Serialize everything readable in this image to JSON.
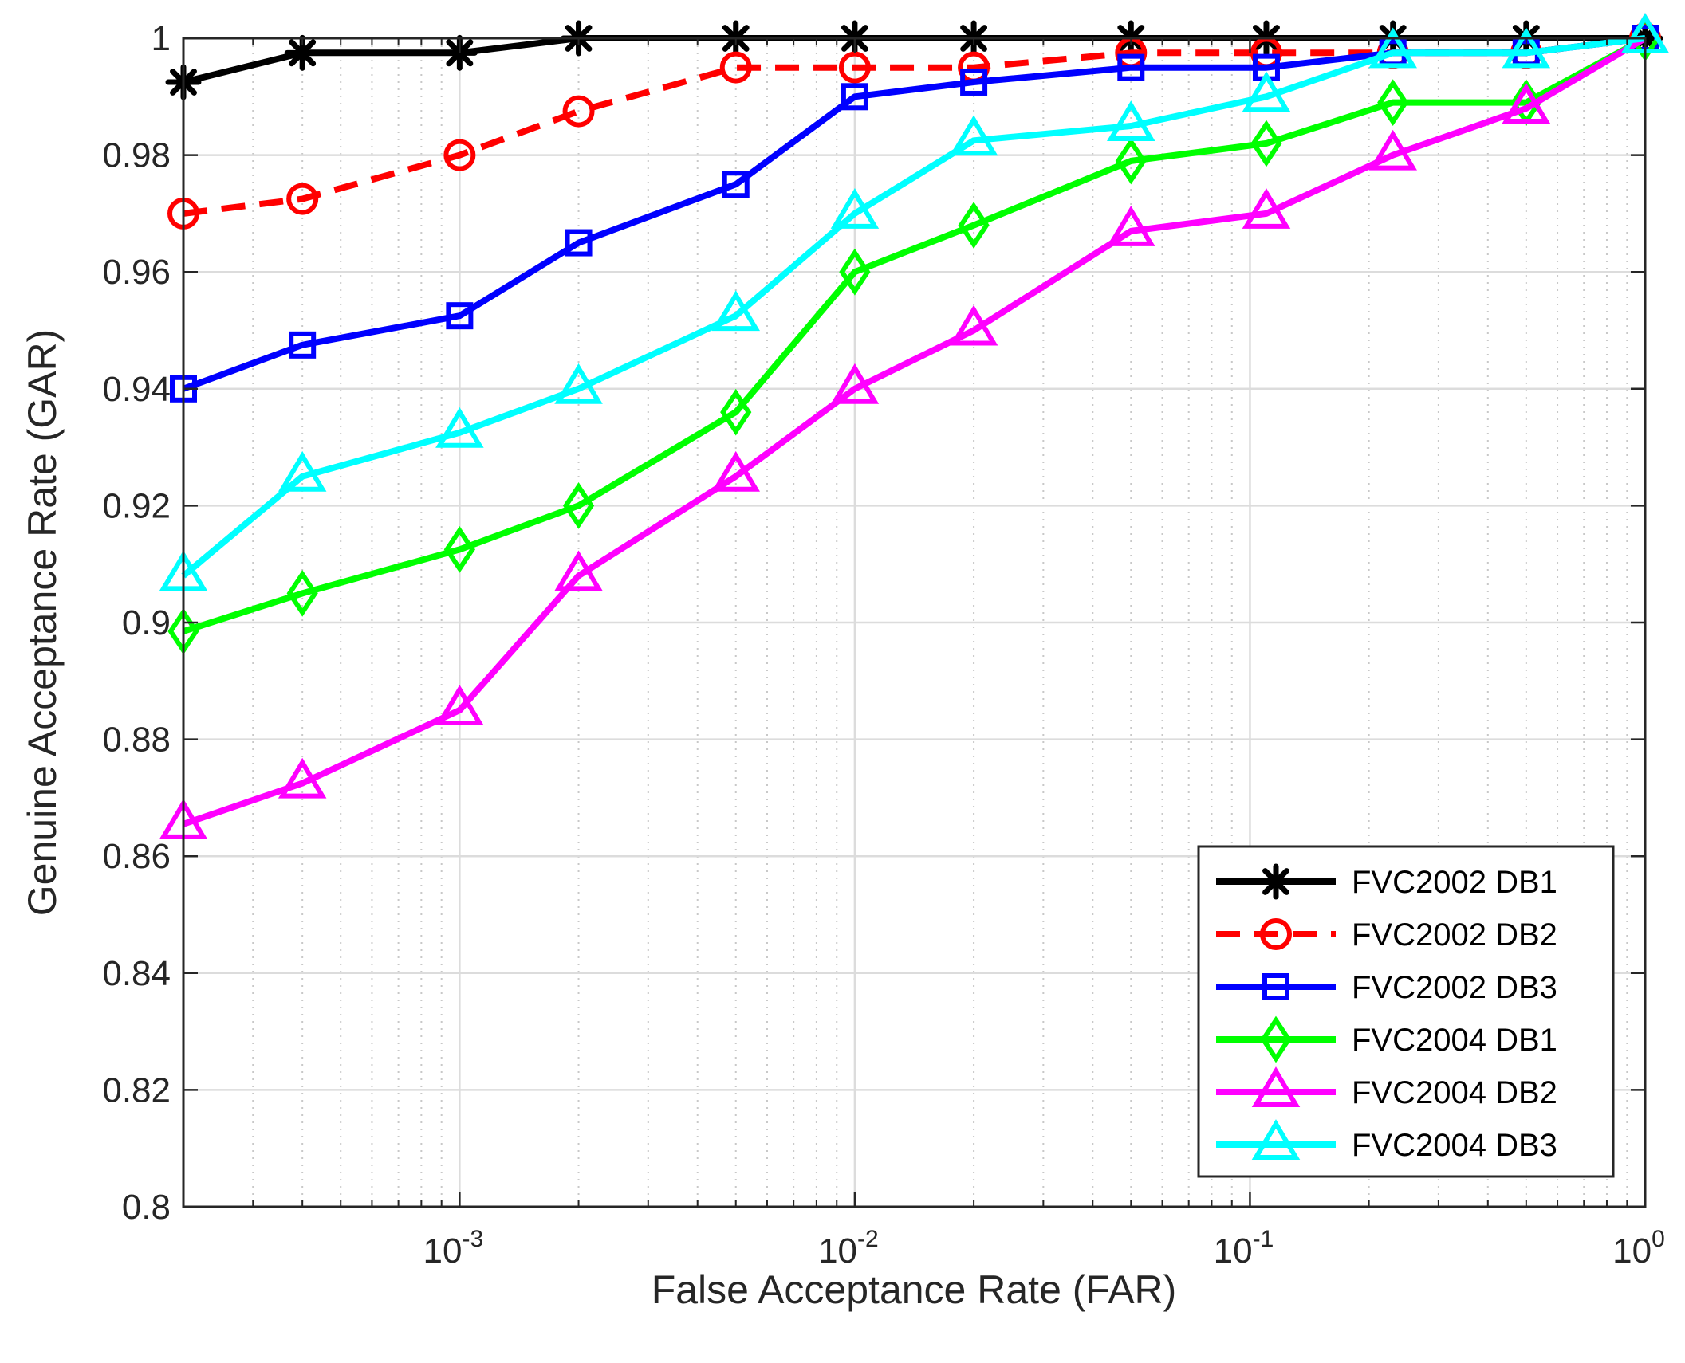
{
  "chart_data": {
    "type": "line",
    "title": "",
    "xlabel": "False Acceptance Rate (FAR)",
    "ylabel": "Genuine Acceptance Rate (GAR)",
    "x_scale": "log",
    "xlim": [
      0.0002,
      1
    ],
    "ylim": [
      0.8,
      1.0
    ],
    "grid": true,
    "legend_position": "bottom-right",
    "x_ticks": [
      {
        "value": 0.001,
        "base": "10",
        "exp": "-3"
      },
      {
        "value": 0.01,
        "base": "10",
        "exp": "-2"
      },
      {
        "value": 0.1,
        "base": "10",
        "exp": "-1"
      },
      {
        "value": 1,
        "base": "10",
        "exp": "0"
      }
    ],
    "y_ticks": [
      {
        "value": 0.8,
        "label": "0.8"
      },
      {
        "value": 0.82,
        "label": "0.82"
      },
      {
        "value": 0.84,
        "label": "0.84"
      },
      {
        "value": 0.86,
        "label": "0.86"
      },
      {
        "value": 0.88,
        "label": "0.88"
      },
      {
        "value": 0.9,
        "label": "0.9"
      },
      {
        "value": 0.92,
        "label": "0.92"
      },
      {
        "value": 0.94,
        "label": "0.94"
      },
      {
        "value": 0.96,
        "label": "0.96"
      },
      {
        "value": 0.98,
        "label": "0.98"
      },
      {
        "value": 1.0,
        "label": "1"
      }
    ],
    "x": [
      0.0002,
      0.0004,
      0.001,
      0.002,
      0.005,
      0.01,
      0.02,
      0.05,
      0.11,
      0.23,
      0.5,
      1.0
    ],
    "series": [
      {
        "name": "FVC2002 DB1",
        "color": "#000000",
        "marker": "asterisk",
        "dash": "solid",
        "values": [
          0.9925,
          0.9975,
          0.9975,
          1.0,
          1.0,
          1.0,
          1.0,
          1.0,
          1.0,
          1.0,
          1.0,
          1.0
        ]
      },
      {
        "name": "FVC2002 DB2",
        "color": "#ff0000",
        "marker": "circle",
        "dash": "dashed",
        "values": [
          0.97,
          0.9725,
          0.98,
          0.9875,
          0.995,
          0.995,
          0.995,
          0.9975,
          0.9975,
          0.9975,
          0.9975,
          1.0
        ]
      },
      {
        "name": "FVC2002 DB3",
        "color": "#0000ff",
        "marker": "square",
        "dash": "solid",
        "values": [
          0.94,
          0.9475,
          0.9525,
          0.965,
          0.975,
          0.99,
          0.9925,
          0.995,
          0.995,
          0.9975,
          0.9975,
          1.0
        ]
      },
      {
        "name": "FVC2004 DB1",
        "color": "#00ff00",
        "marker": "diamond",
        "dash": "solid",
        "values": [
          0.8985,
          0.905,
          0.9125,
          0.92,
          0.936,
          0.96,
          0.968,
          0.979,
          0.982,
          0.989,
          0.989,
          1.0
        ]
      },
      {
        "name": "FVC2004 DB2",
        "color": "#ff00ff",
        "marker": "triangle",
        "dash": "solid",
        "values": [
          0.8655,
          0.8725,
          0.885,
          0.908,
          0.925,
          0.94,
          0.95,
          0.967,
          0.97,
          0.98,
          0.988,
          1.0
        ]
      },
      {
        "name": "FVC2004 DB3",
        "color": "#00ffff",
        "marker": "triangle",
        "dash": "solid",
        "values": [
          0.908,
          0.925,
          0.9325,
          0.94,
          0.9525,
          0.97,
          0.9825,
          0.985,
          0.99,
          0.9975,
          0.9975,
          1.0
        ]
      }
    ]
  }
}
